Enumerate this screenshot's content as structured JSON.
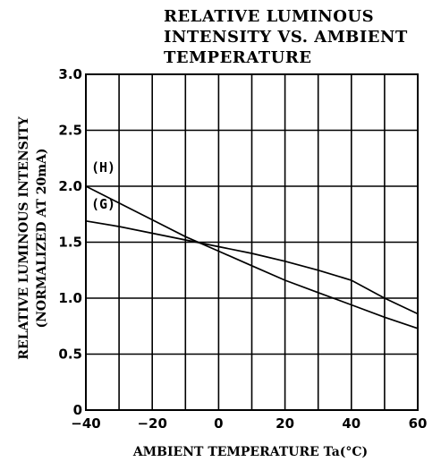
{
  "chart_data": {
    "type": "line",
    "title_lines": [
      "RELATIVE LUMINOUS",
      "INTENSITY VS. AMBIENT",
      "TEMPERATURE"
    ],
    "xlabel": "AMBIENT TEMPERATURE Ta(°C)",
    "ylabel_lines": [
      "RELATIVE LUMINOUS INTENSITY",
      "(NORMALIZED AT 20mA)"
    ],
    "xlim": [
      -40,
      60
    ],
    "ylim": [
      0,
      3.0
    ],
    "x_ticks": [
      -40,
      -20,
      0,
      20,
      40,
      60
    ],
    "x_tick_labels": [
      "-40",
      "-20",
      "0",
      "20",
      "40",
      "60"
    ],
    "y_ticks": [
      0,
      0.5,
      1.0,
      1.5,
      2.0,
      2.5,
      3.0
    ],
    "y_tick_labels": [
      "0",
      "0.5",
      "1.0",
      "1.5",
      "2.0",
      "2.5",
      "3.0"
    ],
    "grid": true,
    "series": [
      {
        "name": "(H)",
        "x": [
          -40,
          -30,
          -20,
          -10,
          0,
          10,
          20,
          30,
          40,
          50,
          60
        ],
        "y": [
          2.0,
          1.85,
          1.7,
          1.55,
          1.42,
          1.29,
          1.16,
          1.05,
          0.94,
          0.83,
          0.73
        ]
      },
      {
        "name": "(G)",
        "x": [
          -40,
          -30,
          -20,
          -10,
          0,
          10,
          20,
          30,
          40,
          50,
          60
        ],
        "y": [
          1.69,
          1.64,
          1.58,
          1.52,
          1.46,
          1.4,
          1.33,
          1.25,
          1.16,
          1.0,
          0.86
        ]
      }
    ]
  }
}
